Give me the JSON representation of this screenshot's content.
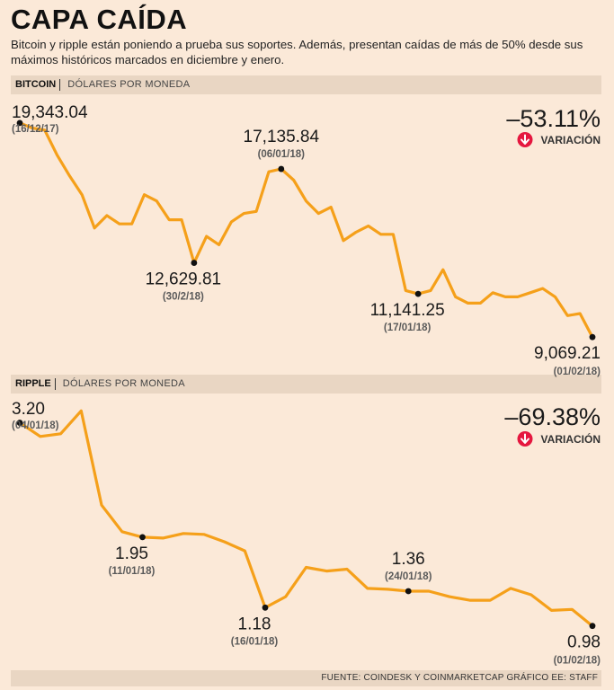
{
  "header": {
    "title": "CAPA CAÍDA",
    "subtitle": "Bitcoin y ripple están poniendo a prueba sus soportes. Además, presentan caídas de más de 50% desde sus máximos históricos marcados en diciembre y enero."
  },
  "footer": {
    "source": "FUENTE: COINDESK Y COINMARKETCAP GRÁFICO EE: STAFF"
  },
  "colors": {
    "line": "#f5a01a",
    "arrow": "#e5173f",
    "background": "#fbe9d8",
    "bar": "#e9d6c3"
  },
  "chart_data": [
    {
      "type": "line",
      "series_name": "BITCOIN",
      "unit": "DÓLARES POR MONEDA",
      "variation": "–53.11%",
      "variation_label": "VARIACIÓN",
      "variation_icon": "down-arrow-icon",
      "ylim": [
        8000,
        20500
      ],
      "values": [
        19343,
        19100,
        19000,
        17800,
        16800,
        15900,
        14300,
        14900,
        14500,
        14500,
        15900,
        15600,
        14700,
        14700,
        12630,
        13900,
        13500,
        14600,
        15000,
        15100,
        17000,
        17136,
        16600,
        15600,
        15000,
        15300,
        13700,
        14100,
        14400,
        14000,
        14000,
        11300,
        11141,
        11300,
        12300,
        11000,
        10700,
        10700,
        11200,
        11000,
        11000,
        11200,
        11400,
        11000,
        10100,
        10200,
        9069
      ],
      "annotations": [
        {
          "index": 0,
          "value": "19,343.04",
          "date": "(16/12/17)",
          "pos": "above-right"
        },
        {
          "index": 14,
          "value": "12,629.81",
          "date": "(30/2/18)",
          "pos": "below"
        },
        {
          "index": 21,
          "value": "17,135.84",
          "date": "(06/01/18)",
          "pos": "above"
        },
        {
          "index": 32,
          "value": "11,141.25",
          "date": "(17/01/18)",
          "pos": "below"
        },
        {
          "index": 46,
          "value": "9,069.21",
          "date": "(01/02/18)",
          "pos": "below-left"
        }
      ]
    },
    {
      "type": "line",
      "series_name": "RIPPLE",
      "unit": "DÓLARES POR MONEDA",
      "variation": "–69.38%",
      "variation_label": "VARIACIÓN",
      "variation_icon": "down-arrow-icon",
      "ylim": [
        0.8,
        3.5
      ],
      "values": [
        3.2,
        3.05,
        3.08,
        3.33,
        2.3,
        2.01,
        1.95,
        1.94,
        1.99,
        1.98,
        1.9,
        1.8,
        1.18,
        1.3,
        1.62,
        1.58,
        1.6,
        1.39,
        1.38,
        1.36,
        1.36,
        1.3,
        1.26,
        1.26,
        1.39,
        1.32,
        1.15,
        1.16,
        0.98
      ],
      "annotations": [
        {
          "index": 0,
          "value": "3.20",
          "date": "(04/01/18)",
          "pos": "above-right"
        },
        {
          "index": 6,
          "value": "1.95",
          "date": "(11/01/18)",
          "pos": "below"
        },
        {
          "index": 12,
          "value": "1.18",
          "date": "(16/01/18)",
          "pos": "below"
        },
        {
          "index": 19,
          "value": "1.36",
          "date": "(24/01/18)",
          "pos": "above"
        },
        {
          "index": 28,
          "value": "0.98",
          "date": "(01/02/18)",
          "pos": "below-left"
        }
      ]
    }
  ]
}
